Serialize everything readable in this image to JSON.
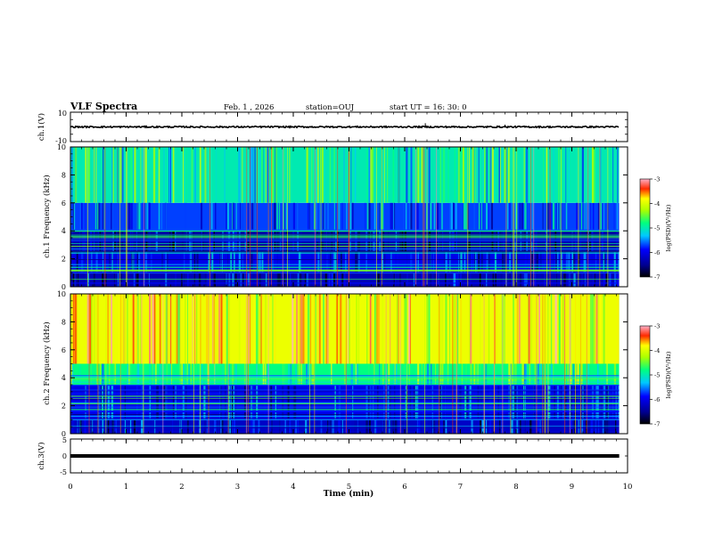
{
  "header": {
    "title": "VLF Spectra",
    "date": "Feb. 1 , 2026",
    "station": "station=OUJ",
    "start_ut": "start UT = 16: 30: 0"
  },
  "chart_data": [
    {
      "type": "line",
      "panel": "waveform-ch1",
      "ylabel": "ch.1(V)",
      "ylim": [
        -10,
        10
      ],
      "yticks": [
        "10",
        "-10"
      ],
      "xlim": [
        0,
        10
      ],
      "baseline": 0,
      "spikes": [
        {
          "x": 6.37,
          "y": 2.5
        },
        {
          "x": 7.8,
          "y": 1.5
        }
      ]
    },
    {
      "type": "heatmap",
      "panel": "spectrogram-ch1",
      "ylabel": "ch.1 Frequency (kHz)",
      "ylim": [
        0,
        10
      ],
      "yticks": [
        "0",
        "2",
        "4",
        "6",
        "8",
        "10"
      ],
      "xlim": [
        0,
        10
      ],
      "data_end_min": 9.85,
      "colorbar": {
        "label": "log(PSD)(V²/Hz)",
        "range": [
          -7,
          -3
        ],
        "ticks": [
          "-3",
          "-4",
          "-5",
          "-6",
          "-7"
        ]
      },
      "band_levels": [
        {
          "f": [
            0,
            1
          ],
          "level": -6.3
        },
        {
          "f": [
            1,
            2.5
          ],
          "level": -6.0
        },
        {
          "f": [
            2.5,
            4
          ],
          "level": -6.4
        },
        {
          "f": [
            4,
            6
          ],
          "level": -5.7
        },
        {
          "f": [
            6,
            10
          ],
          "level": -5.0
        }
      ]
    },
    {
      "type": "heatmap",
      "panel": "spectrogram-ch2",
      "ylabel": "ch.2 Frequency (kHz)",
      "ylim": [
        0,
        10
      ],
      "yticks": [
        "0",
        "2",
        "4",
        "6",
        "8",
        "10"
      ],
      "xlim": [
        0,
        10
      ],
      "data_end_min": 9.85,
      "colorbar": {
        "label": "log(PSD)(V²/Hz)",
        "range": [
          -7,
          -3
        ],
        "ticks": [
          "-3",
          "-4",
          "-5",
          "-6",
          "-7"
        ]
      },
      "band_levels": [
        {
          "f": [
            0,
            1
          ],
          "level": -6.2
        },
        {
          "f": [
            1,
            3.5
          ],
          "level": -6.0
        },
        {
          "f": [
            3.5,
            5
          ],
          "level": -4.8
        },
        {
          "f": [
            5,
            10
          ],
          "level": -3.9
        }
      ]
    },
    {
      "type": "line",
      "panel": "waveform-ch3",
      "ylabel": "ch.3(V)",
      "ylim": [
        -5,
        5
      ],
      "yticks": [
        "5",
        "0",
        "-5"
      ],
      "xlim": [
        0,
        10
      ],
      "baseline": 0
    }
  ],
  "xaxis": {
    "label": "Time (min)",
    "ticks": [
      "0",
      "1",
      "2",
      "3",
      "4",
      "5",
      "6",
      "7",
      "8",
      "9",
      "10"
    ]
  }
}
